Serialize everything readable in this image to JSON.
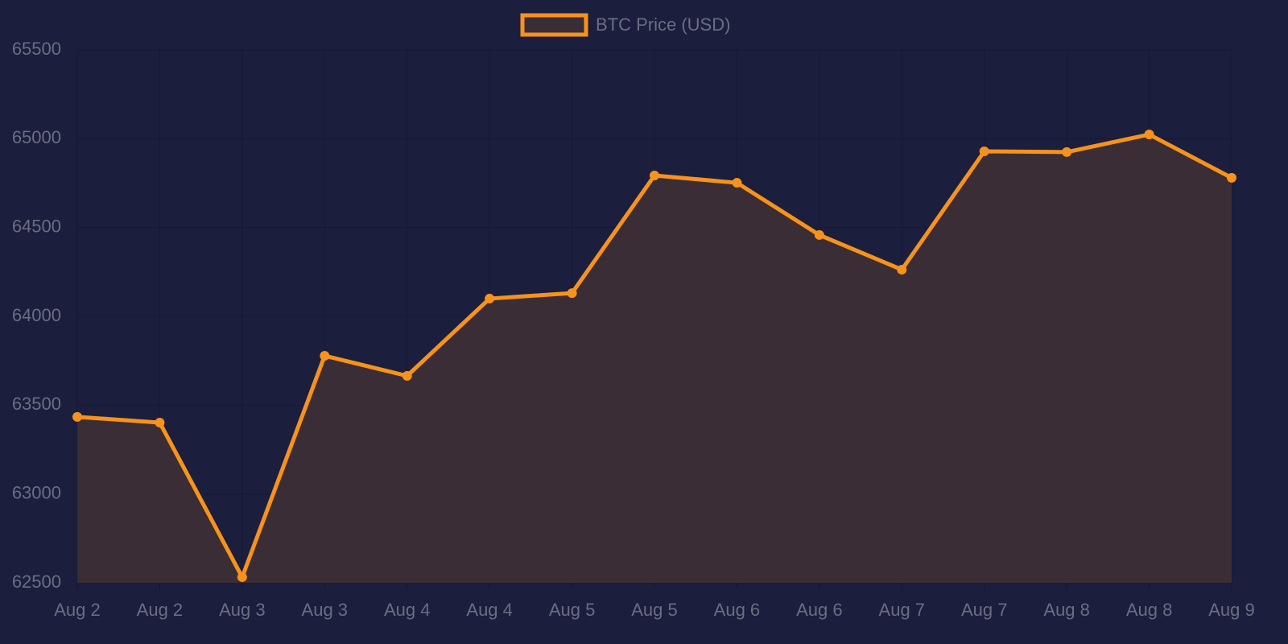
{
  "chart_data": {
    "type": "line",
    "categories": [
      "Aug 2",
      "Aug 2",
      "Aug 3",
      "Aug 3",
      "Aug 4",
      "Aug 4",
      "Aug 5",
      "Aug 5",
      "Aug 6",
      "Aug 6",
      "Aug 7",
      "Aug 7",
      "Aug 8",
      "Aug 8",
      "Aug 9"
    ],
    "series": [
      {
        "name": "BTC Price (USD)",
        "color": "#f7931a",
        "fill_color": "#3a2d35",
        "values": [
          63434,
          63402,
          62532,
          63778,
          63665,
          64100,
          64131,
          64793,
          64752,
          64458,
          64263,
          64929,
          64925,
          65024,
          64780
        ]
      }
    ],
    "ylim": [
      62500,
      65500
    ],
    "yticks": [
      62500,
      63000,
      63500,
      64000,
      64500,
      65000,
      65500
    ],
    "grid": true,
    "legend": "top"
  }
}
